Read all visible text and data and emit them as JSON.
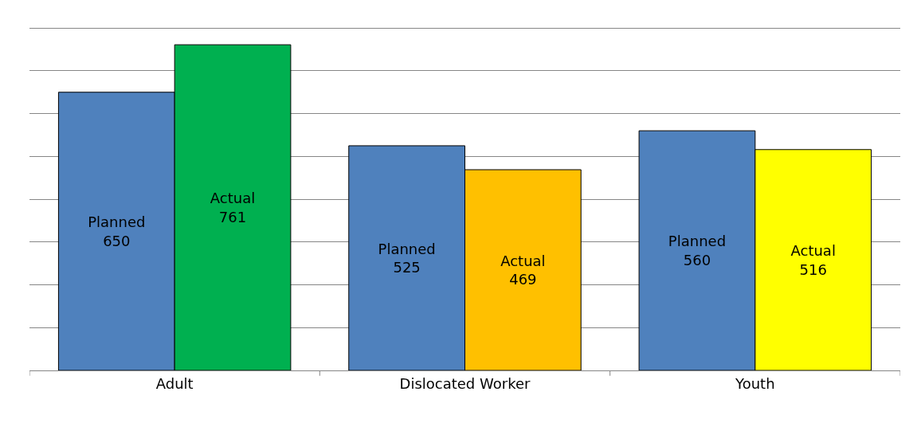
{
  "chart_data": {
    "type": "bar",
    "categories": [
      "Adult",
      "Dislocated Worker",
      "Youth"
    ],
    "series": [
      {
        "name": "Planned",
        "color": "#4f81bd",
        "values": [
          650,
          525,
          560
        ]
      },
      {
        "name": "Actual",
        "colors": [
          "#00b050",
          "#ffc000",
          "#ffff00"
        ],
        "values": [
          761,
          469,
          516
        ]
      }
    ],
    "data_labels": true,
    "yticks": [
      {
        "value": 0,
        "label": null
      },
      {
        "value": 100,
        "label": null
      },
      {
        "value": 200,
        "label": null
      },
      {
        "value": 300,
        "label": null
      },
      {
        "value": 400,
        "label": null
      },
      {
        "value": 500,
        "label": null
      },
      {
        "value": 600,
        "label": null
      },
      {
        "value": 700,
        "label": null
      },
      {
        "value": 800,
        "label": null
      }
    ],
    "grid": "y",
    "legend": false,
    "tick_labels": "x"
  }
}
